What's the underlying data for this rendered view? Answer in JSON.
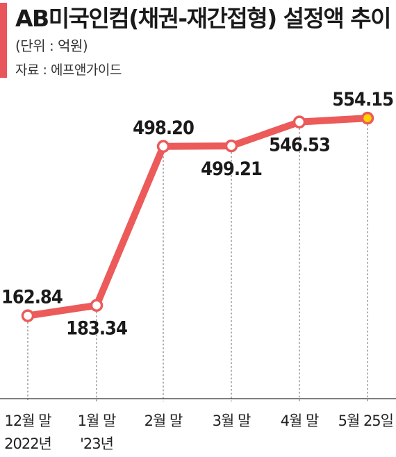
{
  "header": {
    "title": "AB미국인컴(채권-재간접형) 설정액 추이",
    "unit_note": "(단위 : 억원)",
    "source_note": "자료 : 에프앤가이드"
  },
  "colors": {
    "accent": "#e8555a",
    "line": "#ec5a5a",
    "marker_fill": "#ffffff",
    "highlight_marker_fill": "#ffd200",
    "text": "#1a1a1a",
    "guide": "#777777",
    "axis": "#333333"
  },
  "chart_data": {
    "type": "line",
    "title": "AB미국인컴(채권-재간접형) 설정액 추이",
    "unit": "(단위 : 억원)",
    "source": "자료 : 에프앤가이드",
    "categories": [
      "12월 말",
      "1월 말",
      "2월 말",
      "3월 말",
      "4월 말",
      "5월 25일"
    ],
    "category_sublabels": [
      "2022년",
      "'23년",
      "",
      "",
      "",
      ""
    ],
    "series": [
      {
        "values": [
          162.84,
          183.34,
          498.2,
          499.21,
          546.53,
          554.15
        ],
        "labels": [
          "162.84",
          "183.34",
          "498.20",
          "499.21",
          "546.53",
          "554.15"
        ]
      }
    ],
    "ylim": [
      0,
      600
    ],
    "grid": false,
    "legend": "none",
    "highlight_last_point": true
  }
}
